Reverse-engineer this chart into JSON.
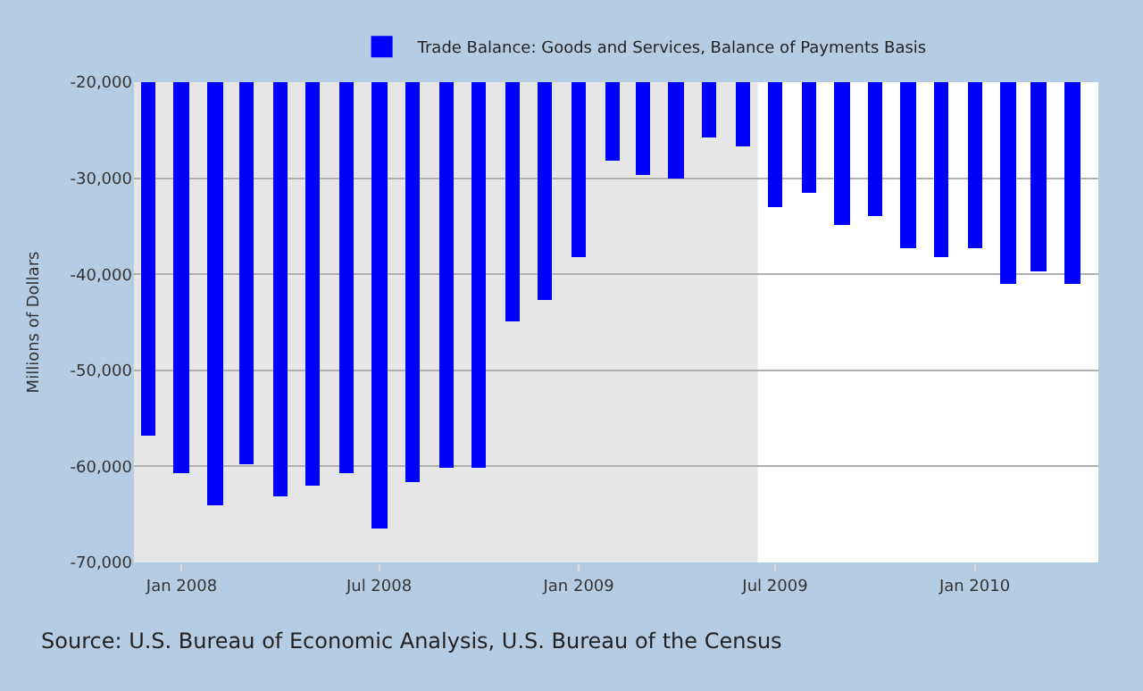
{
  "chart_data": {
    "type": "bar",
    "x": [
      "2007-12",
      "2008-01",
      "2008-02",
      "2008-03",
      "2008-04",
      "2008-05",
      "2008-06",
      "2008-07",
      "2008-08",
      "2008-09",
      "2008-10",
      "2008-11",
      "2008-12",
      "2009-01",
      "2009-02",
      "2009-03",
      "2009-04",
      "2009-05",
      "2009-06",
      "2009-07",
      "2009-08",
      "2009-09",
      "2009-10",
      "2009-11",
      "2009-12",
      "2010-01",
      "2010-02",
      "2010-03",
      "2010-04"
    ],
    "series": [
      {
        "name": "Trade Balance: Goods and Services, Balance of Payments Basis",
        "color": "#0000ff",
        "values": [
          -56800,
          -60700,
          -64100,
          -59700,
          -63100,
          -62000,
          -60700,
          -66500,
          -61600,
          -60200,
          -60100,
          -44900,
          -42600,
          -38200,
          -28100,
          -29700,
          -30100,
          -25800,
          -26700,
          -33000,
          -31500,
          -34900,
          -33900,
          -37300,
          -38200,
          -37300,
          -41000,
          -39700,
          -41000
        ]
      }
    ],
    "ylabel": "Millions of Dollars",
    "ylim": [
      -70000,
      -20000
    ],
    "yticks": [
      {
        "value": -70000,
        "label": "-70,000"
      },
      {
        "value": -60000,
        "label": "-60,000"
      },
      {
        "value": -50000,
        "label": "-50,000"
      },
      {
        "value": -40000,
        "label": "-40,000"
      },
      {
        "value": -30000,
        "label": "-30,000"
      },
      {
        "value": -20000,
        "label": "-20,000"
      }
    ],
    "xlim": [
      "2007-11-18",
      "2010-04-25"
    ],
    "xticks": [
      {
        "value": "2008-01",
        "label": "Jan 2008"
      },
      {
        "value": "2008-07",
        "label": "Jul 2008"
      },
      {
        "value": "2009-01",
        "label": "Jan 2009"
      },
      {
        "value": "2009-07",
        "label": "Jul 2009"
      },
      {
        "value": "2010-01",
        "label": "Jan 2010"
      }
    ],
    "bands": [
      {
        "axis": "x",
        "from": "2007-11-18",
        "to": "2009-06-15",
        "color": "#e6e6e6"
      }
    ],
    "annotations": [
      "Source: U.S. Bureau of Economic Analysis, U.S. Bureau of the Census"
    ],
    "grid": "y",
    "legend": "top"
  }
}
